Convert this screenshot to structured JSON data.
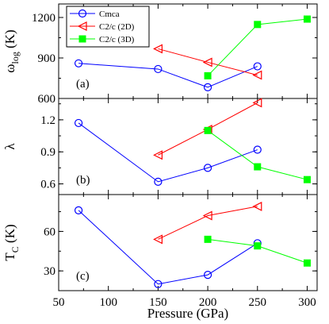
{
  "chart_data": {
    "type": "line",
    "xlabel": "Pressure (GPa)",
    "xlim": [
      50,
      310
    ],
    "xticks": [
      50,
      100,
      150,
      200,
      250,
      300
    ],
    "legend": {
      "placement": "top-left",
      "entries": [
        "Cmca",
        "C2/c (2D)",
        "C2/c (3D)"
      ]
    },
    "colors": {
      "Cmca": "#0000ff",
      "C2/c (2D)": "#ff0000",
      "C2/c (3D)": "#00ff00"
    },
    "markers": {
      "Cmca": "circle-open",
      "C2/c (2D)": "triangle-left-open",
      "C2/c (3D)": "square-filled"
    },
    "panels": [
      {
        "letter": "(a)",
        "ylabel_main": "ω",
        "ylabel_sub": "log",
        "ylabel_tail": " (K)",
        "ylim": [
          600,
          1300
        ],
        "yticks": [
          600,
          900,
          1200
        ],
        "series": [
          {
            "name": "Cmca",
            "x": [
              70,
              150,
              200,
              250
            ],
            "y": [
              860,
              818,
              683,
              838
            ]
          },
          {
            "name": "C2/c (2D)",
            "x": [
              150,
              200,
              250
            ],
            "y": [
              968,
              868,
              773
            ]
          },
          {
            "name": "C2/c (3D)",
            "x": [
              200,
              250,
              300
            ],
            "y": [
              768,
              1148,
              1188
            ]
          }
        ]
      },
      {
        "letter": "(b)",
        "ylabel_main": "λ",
        "ylabel_sub": "",
        "ylabel_tail": "",
        "ylim": [
          0.5,
          1.4
        ],
        "yticks": [
          0.6,
          0.9,
          1.2
        ],
        "series": [
          {
            "name": "Cmca",
            "x": [
              70,
              150,
              200,
              250
            ],
            "y": [
              1.17,
              0.62,
              0.75,
              0.92
            ]
          },
          {
            "name": "C2/c (2D)",
            "x": [
              150,
              200,
              250
            ],
            "y": [
              0.87,
              1.11,
              1.36
            ]
          },
          {
            "name": "C2/c (3D)",
            "x": [
              200,
              250,
              300
            ],
            "y": [
              1.1,
              0.76,
              0.64
            ]
          }
        ]
      },
      {
        "letter": "(c)",
        "ylabel_main": "T",
        "ylabel_sub": "C",
        "ylabel_tail": " (K)",
        "ylim": [
          15,
          88
        ],
        "yticks": [
          30,
          60
        ],
        "series": [
          {
            "name": "Cmca",
            "x": [
              70,
              150,
              200,
              250
            ],
            "y": [
              76,
              20,
              27,
              51
            ]
          },
          {
            "name": "C2/c (2D)",
            "x": [
              150,
              200,
              250
            ],
            "y": [
              54,
              72,
              79
            ]
          },
          {
            "name": "C2/c (3D)",
            "x": [
              200,
              250,
              300
            ],
            "y": [
              54,
              49,
              36
            ]
          }
        ]
      }
    ]
  }
}
